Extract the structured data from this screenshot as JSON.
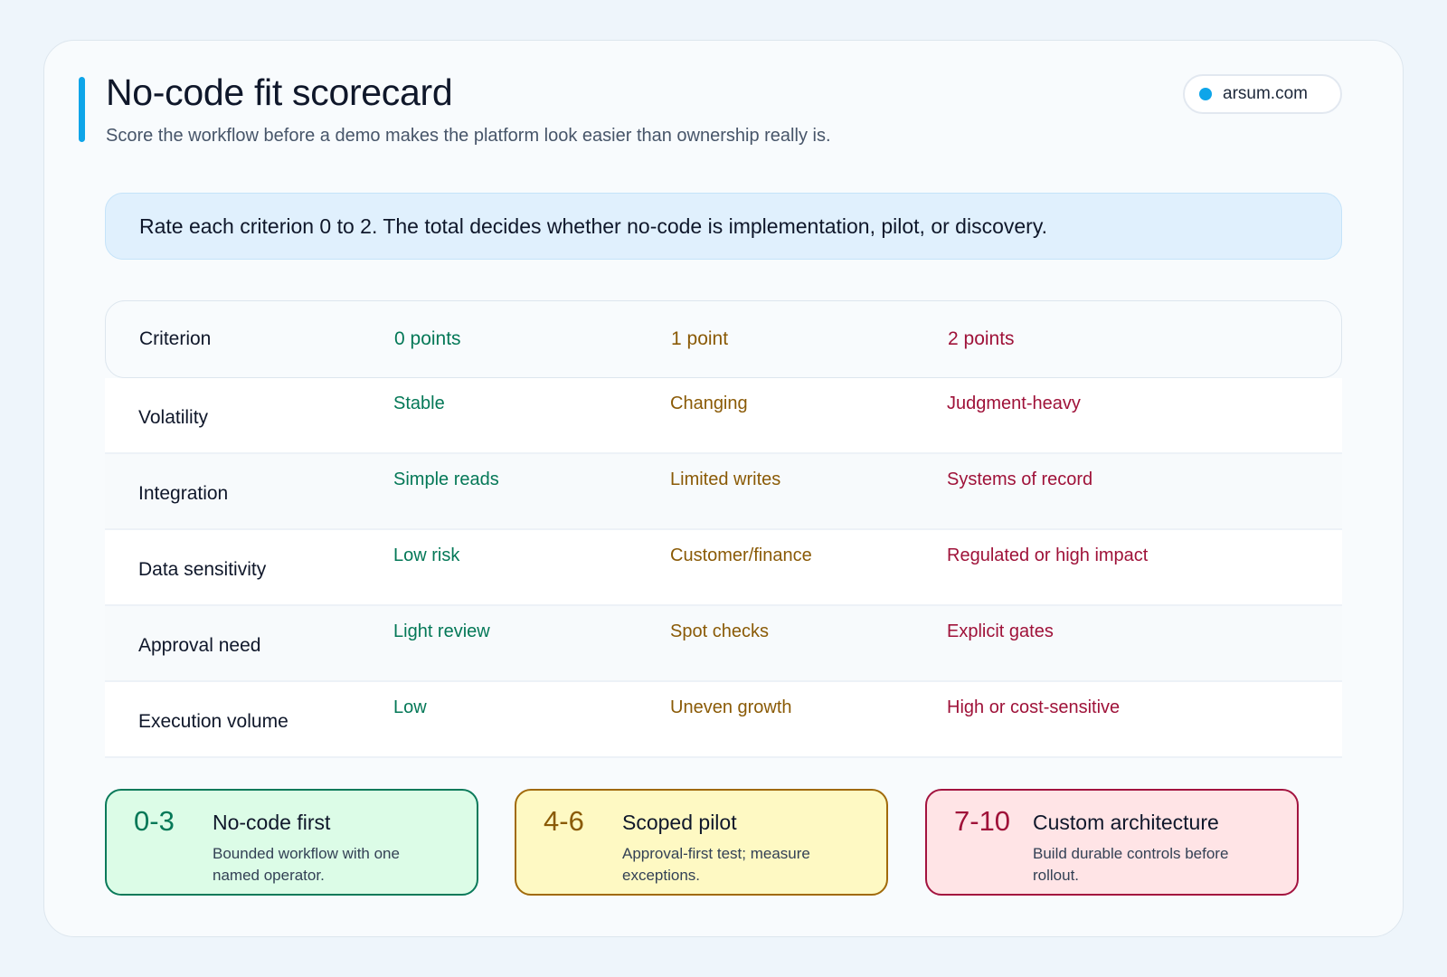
{
  "header": {
    "title": "No-code fit scorecard",
    "subtitle": "Score the workflow before a demo makes the platform look easier than ownership really is.",
    "site": "arsum.com"
  },
  "colors": {
    "accent": "#0ea5e9",
    "zero": "#047857",
    "one": "#8a5a06",
    "two": "#9f1239"
  },
  "instruction": "Rate each criterion 0 to 2. The total decides whether no-code is implementation, pilot, or discovery.",
  "table": {
    "headers": [
      "Criterion",
      "0 points",
      "1 point",
      "2 points"
    ],
    "rows": [
      {
        "criterion": "Volatility",
        "zero": "Stable",
        "one": "Changing",
        "two": "Judgment-heavy"
      },
      {
        "criterion": "Integration",
        "zero": "Simple reads",
        "one": "Limited writes",
        "two": "Systems of record"
      },
      {
        "criterion": "Data sensitivity",
        "zero": "Low risk",
        "one": "Customer/finance",
        "two": "Regulated or high impact"
      },
      {
        "criterion": "Approval need",
        "zero": "Light review",
        "one": "Spot checks",
        "two": "Explicit gates"
      },
      {
        "criterion": "Execution volume",
        "zero": "Low",
        "one": "Uneven growth",
        "two": "High or cost-sensitive"
      }
    ]
  },
  "bands": [
    {
      "range": "0-3",
      "title": "No-code first",
      "desc": "Bounded workflow with one named operator."
    },
    {
      "range": "4-6",
      "title": "Scoped pilot",
      "desc": "Approval-first test; measure exceptions."
    },
    {
      "range": "7-10",
      "title": "Custom architecture",
      "desc": "Build durable controls before rollout."
    }
  ]
}
